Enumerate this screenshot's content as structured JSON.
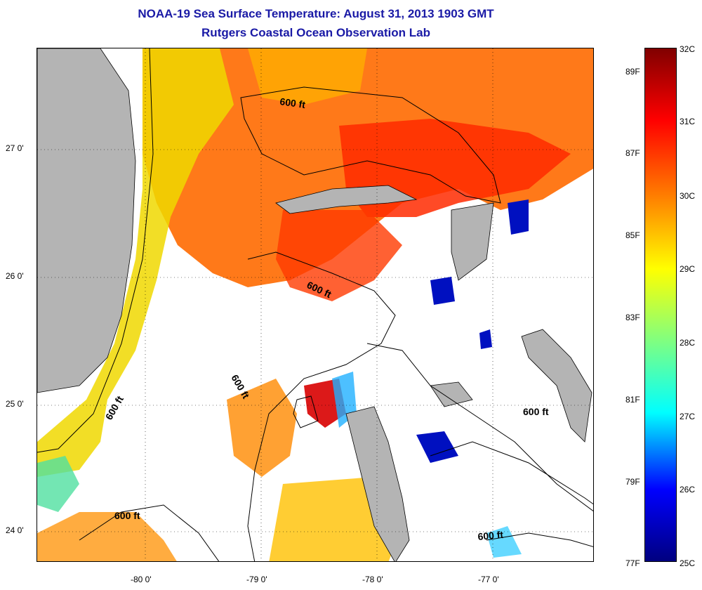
{
  "title": "NOAA-19 Sea Surface Temperature:  August 31, 2013 1903 GMT",
  "subtitle": "Rutgers Coastal Ocean Observation Lab",
  "axes": {
    "x_ticks": [
      {
        "label": "-80 0'",
        "lon": -80
      },
      {
        "label": "-79 0'",
        "lon": -79
      },
      {
        "label": "-78 0'",
        "lon": -78
      },
      {
        "label": "-77 0'",
        "lon": -77
      }
    ],
    "y_ticks": [
      {
        "label": "27 0'",
        "lat": 27
      },
      {
        "label": "26 0'",
        "lat": 26
      },
      {
        "label": "25 0'",
        "lat": 25
      },
      {
        "label": "24 0'",
        "lat": 24
      }
    ]
  },
  "contour_labels": [
    "600 ft",
    "600 ft",
    "600 ft",
    "600 ft",
    "600 ft",
    "600 ft",
    "600 ft"
  ],
  "colorbar": {
    "celsius": [
      "32C",
      "31C",
      "30C",
      "29C",
      "28C",
      "27C",
      "26C",
      "25C"
    ],
    "fahrenheit": [
      "89F",
      "87F",
      "85F",
      "83F",
      "81F",
      "79F",
      "77F"
    ]
  },
  "colors": {
    "title": "#1a1aa6",
    "land": "#b4b4b4",
    "warm": "#ff3000",
    "orange": "#ff8000",
    "yellow": "#e8e000",
    "cool": "#40d0a0",
    "cold": "#0010c0"
  }
}
